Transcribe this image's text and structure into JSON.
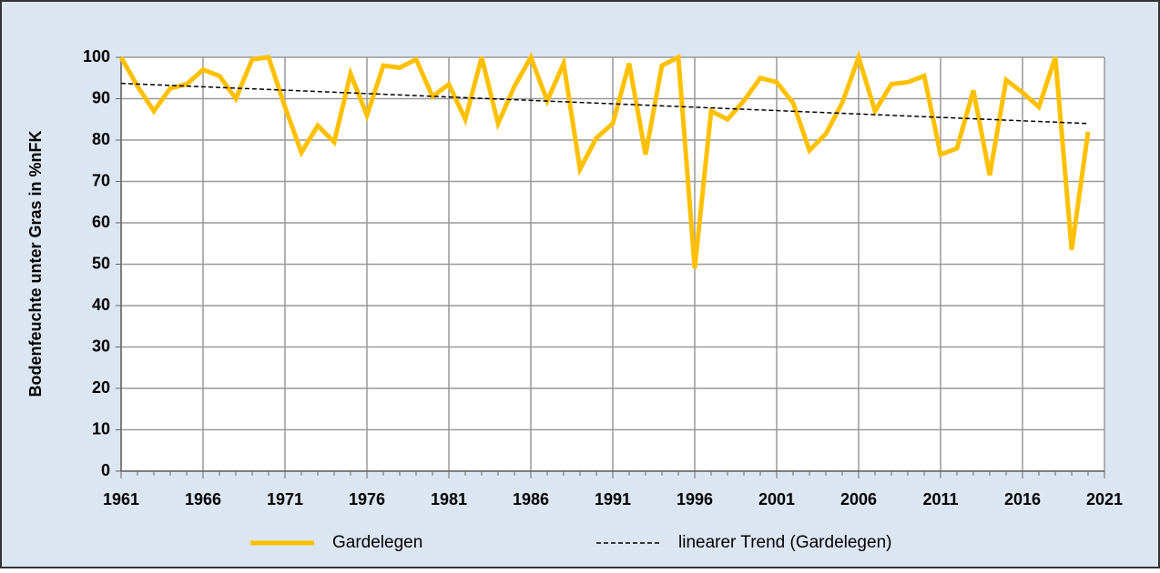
{
  "chart_data": {
    "type": "line",
    "ylabel": "Bodenfeuchte unter Gras in %nFK",
    "x": [
      1961,
      1962,
      1963,
      1964,
      1965,
      1966,
      1967,
      1968,
      1969,
      1970,
      1971,
      1972,
      1973,
      1974,
      1975,
      1976,
      1977,
      1978,
      1979,
      1980,
      1981,
      1982,
      1983,
      1984,
      1985,
      1986,
      1987,
      1988,
      1989,
      1990,
      1991,
      1992,
      1993,
      1994,
      1995,
      1996,
      1997,
      1998,
      1999,
      2000,
      2001,
      2002,
      2003,
      2004,
      2005,
      2006,
      2007,
      2008,
      2009,
      2010,
      2011,
      2012,
      2013,
      2014,
      2015,
      2016,
      2017,
      2018,
      2019,
      2020
    ],
    "series": [
      {
        "name": "Gardelegen",
        "color": "#ffc000",
        "style": "solid",
        "values": [
          100,
          93,
          87,
          92.5,
          93.5,
          97,
          95.5,
          90,
          99.5,
          100,
          88,
          77,
          83.5,
          79.5,
          96,
          86,
          98,
          97.5,
          99.5,
          90.5,
          93.5,
          85,
          100,
          84,
          93,
          100,
          89.5,
          98.5,
          73,
          80.5,
          84,
          98.5,
          76.5,
          98,
          100,
          49,
          87,
          85,
          89.5,
          95,
          94,
          89,
          77.5,
          81.5,
          89,
          100,
          87,
          93.5,
          94,
          95.5,
          76.5,
          78,
          92,
          71.5,
          94.5,
          91.5,
          88,
          100,
          53.5,
          82
        ]
      },
      {
        "name": "linearer Trend (Gardelegen)",
        "color": "#000000",
        "style": "dashed",
        "x": [
          1961,
          2020
        ],
        "values": [
          93.7,
          84
        ]
      }
    ],
    "xlim": [
      1961,
      2021
    ],
    "xticks": [
      1961,
      1966,
      1971,
      1976,
      1981,
      1986,
      1991,
      1996,
      2001,
      2006,
      2011,
      2016,
      2021
    ],
    "ylim": [
      0,
      100
    ],
    "yticks": [
      0,
      10,
      20,
      30,
      40,
      50,
      60,
      70,
      80,
      90,
      100
    ],
    "grid": true,
    "legend": "bottom"
  }
}
